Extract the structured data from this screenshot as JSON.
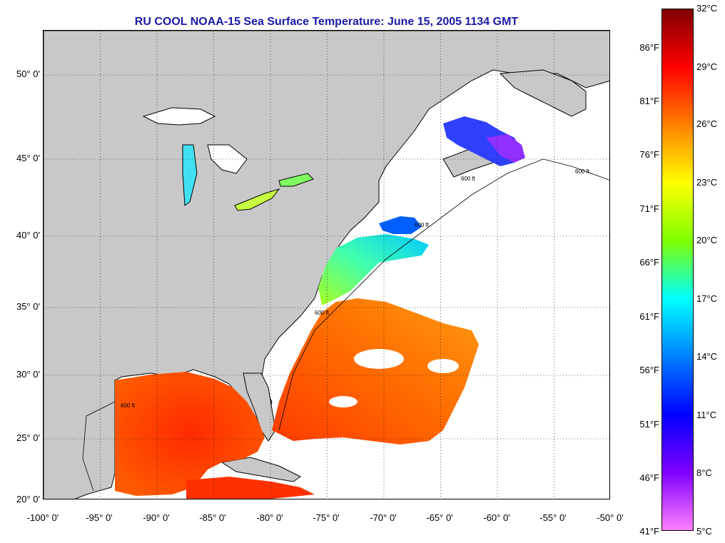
{
  "title": "RU COOL  NOAA-15  Sea Surface Temperature:  June 15, 2005 1134 GMT",
  "map": {
    "lon_range": [
      -100,
      -50
    ],
    "lat_range": [
      20,
      52.5
    ],
    "lat_ticks": [
      "50° 0'",
      "45° 0'",
      "40° 0'",
      "35° 0'",
      "30° 0'",
      "25° 0'",
      "20° 0'"
    ],
    "lon_ticks": [
      "-100° 0'",
      "-95° 0'",
      "-90° 0'",
      "-85° 0'",
      "-80° 0'",
      "-75° 0'",
      "-70° 0'",
      "-65° 0'",
      "-60° 0'",
      "-55° 0'",
      "-50° 0'"
    ],
    "isobath_labels": [
      "600 ft",
      "600 ft",
      "600 ft",
      "600 ft",
      "600 ft"
    ],
    "land_color": "#c8c8c8",
    "cloud_color": "#ffffff"
  },
  "colorbar": {
    "fahrenheit": [
      "86°F",
      "81°F",
      "76°F",
      "71°F",
      "66°F",
      "61°F",
      "56°F",
      "51°F",
      "46°F",
      "41°F"
    ],
    "celsius": [
      "32°C",
      "29°C",
      "26°C",
      "23°C",
      "20°C",
      "17°C",
      "14°C",
      "11°C",
      "8°C",
      "5°C"
    ],
    "stops": [
      "#800000",
      "#ff0000",
      "#ff8000",
      "#ffff00",
      "#80ff00",
      "#00ffff",
      "#0080ff",
      "#0000ff",
      "#8000ff",
      "#ff80ff"
    ]
  }
}
